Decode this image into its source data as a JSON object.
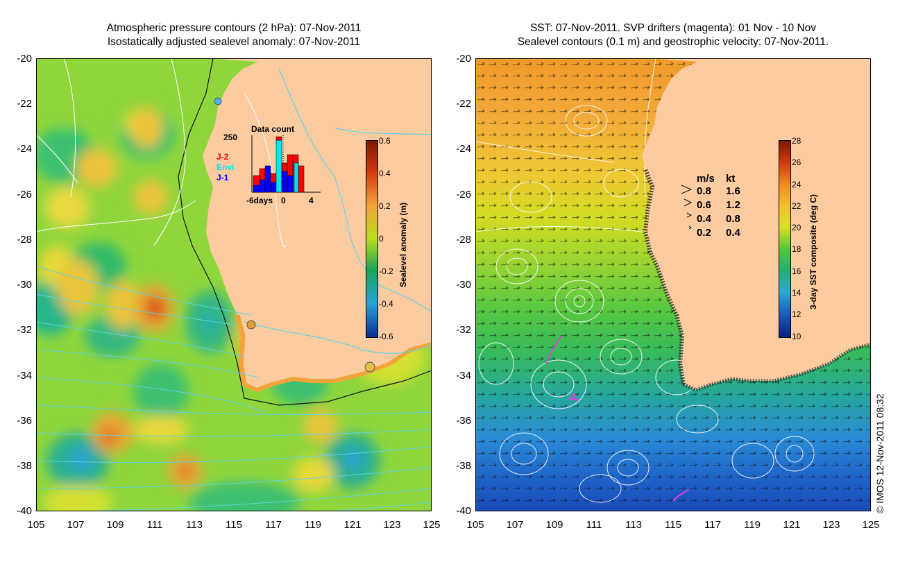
{
  "left_panel": {
    "title_line1": "Atmospheric pressure contours (2 hPa): 07-Nov-2011",
    "title_line2": "Isostatically adjusted sealevel anomaly: 07-Nov-2011",
    "colorbar": {
      "label": "Sealevel anomaly (m)",
      "ticks": [
        "0.6",
        "0.4",
        "0.2",
        "0",
        "-0.2",
        "-0.4",
        "-0.6"
      ],
      "colors": [
        "#7a1a00",
        "#d03a10",
        "#f2a43a",
        "#b9dd1e",
        "#1aa45a",
        "#28a2d6",
        "#0a2c94"
      ]
    },
    "data_count": {
      "title": "Data count",
      "ymax_label": "250",
      "xlabels": [
        "-6days",
        "0",
        "4"
      ],
      "legend": [
        {
          "name": "J-2",
          "color": "#ff0000"
        },
        {
          "name": "Envi",
          "color": "#00e5ee"
        },
        {
          "name": "J-1",
          "color": "#0000ff"
        }
      ]
    }
  },
  "right_panel": {
    "title_line1": "SST: 07-Nov-2011. SVP drifters (magenta): 01 Nov - 10 Nov",
    "title_line2": "Sealevel contours (0.1 m) and geostrophic velocity: 07-Nov-2011.",
    "colorbar": {
      "label": "3-day SST composite (deg C)",
      "ticks": [
        "28",
        "26",
        "24",
        "22",
        "20",
        "18",
        "16",
        "14",
        "12",
        "10"
      ],
      "colors": [
        "#7a1a00",
        "#d03a10",
        "#f08a20",
        "#f2c030",
        "#d9e020",
        "#58c43a",
        "#22b070",
        "#2aa8d0",
        "#1c5cc0",
        "#0a2080"
      ]
    },
    "velocity_legend": {
      "header": {
        "ms": "m/s",
        "kt": "kt"
      },
      "rows": [
        {
          "ms": "0.8",
          "kt": "1.6"
        },
        {
          "ms": "0.6",
          "kt": "1.2"
        },
        {
          "ms": "0.4",
          "kt": "0.8"
        },
        {
          "ms": "0.2",
          "kt": "0.4"
        }
      ]
    }
  },
  "axes": {
    "lat_ticks": [
      "-20",
      "-22",
      "-24",
      "-26",
      "-28",
      "-30",
      "-32",
      "-34",
      "-36",
      "-38",
      "-40"
    ],
    "lon_ticks": [
      "105",
      "107",
      "109",
      "111",
      "113",
      "115",
      "117",
      "119",
      "121",
      "123",
      "125"
    ]
  },
  "credit": "© IMOS 12-Nov-2011 08:32",
  "colors": {
    "land": "#fccba0",
    "sla_background": "#8fd63c",
    "sst_background": "#6ed24a"
  }
}
